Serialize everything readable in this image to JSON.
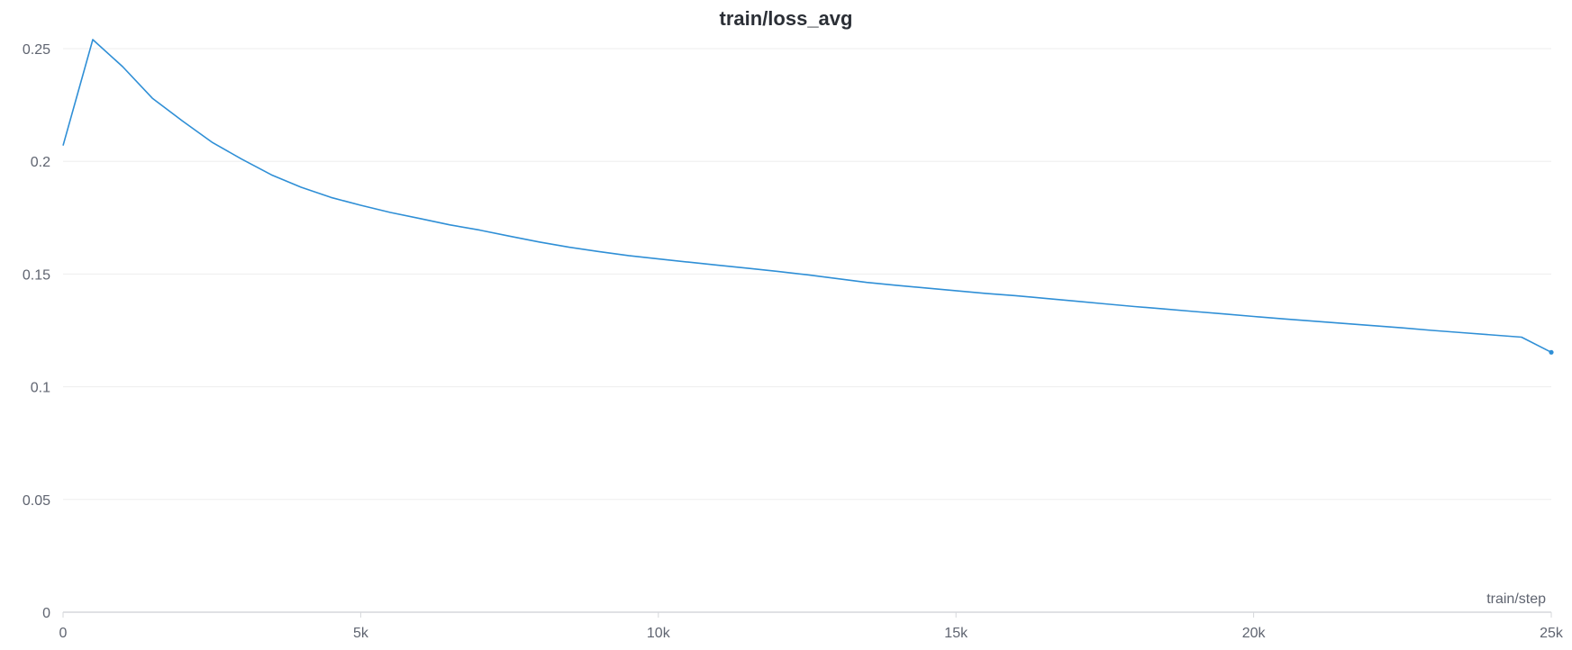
{
  "chart_data": {
    "type": "line",
    "title": "train/loss_avg",
    "xlabel": "train/step",
    "ylabel": "",
    "xlim": [
      0,
      25000
    ],
    "ylim": [
      0,
      0.25
    ],
    "grid": true,
    "x_ticks": [
      {
        "value": 0,
        "label": "0"
      },
      {
        "value": 5000,
        "label": "5k"
      },
      {
        "value": 10000,
        "label": "10k"
      },
      {
        "value": 15000,
        "label": "15k"
      },
      {
        "value": 20000,
        "label": "20k"
      },
      {
        "value": 25000,
        "label": "25k"
      }
    ],
    "y_ticks": [
      {
        "value": 0,
        "label": "0"
      },
      {
        "value": 0.05,
        "label": "0.05"
      },
      {
        "value": 0.1,
        "label": "0.1"
      },
      {
        "value": 0.15,
        "label": "0.15"
      },
      {
        "value": 0.2,
        "label": "0.2"
      },
      {
        "value": 0.25,
        "label": "0.25"
      }
    ],
    "colors": {
      "line": "#2f8fd6",
      "grid": "#eeeeee",
      "axis": "#d5d7db"
    },
    "series": [
      {
        "x": [
          0,
          500,
          1000,
          1500,
          2000,
          2500,
          3000,
          3500,
          4000,
          4500,
          5000,
          5500,
          6000,
          6500,
          7000,
          7500,
          8000,
          8500,
          9000,
          9500,
          10000,
          10500,
          11000,
          11500,
          12000,
          12500,
          13000,
          13500,
          14000,
          14500,
          15000,
          15500,
          16000,
          16500,
          17000,
          17500,
          18000,
          18500,
          19000,
          19500,
          20000,
          20500,
          21000,
          21500,
          22000,
          22500,
          23000,
          23500,
          24000,
          24500,
          25000
        ],
        "values": [
          0.207,
          0.254,
          0.242,
          0.228,
          0.218,
          0.2085,
          0.201,
          0.194,
          0.1885,
          0.184,
          0.1805,
          0.1773,
          0.1746,
          0.1718,
          0.1695,
          0.1668,
          0.1642,
          0.1619,
          0.16,
          0.1582,
          0.1567,
          0.1553,
          0.1539,
          0.1526,
          0.1512,
          0.1497,
          0.148,
          0.1463,
          0.145,
          0.1438,
          0.1426,
          0.1414,
          0.1404,
          0.1392,
          0.138,
          0.1368,
          0.1356,
          0.1345,
          0.1334,
          0.1323,
          0.1312,
          0.1301,
          0.1291,
          0.1281,
          0.1271,
          0.1261,
          0.125,
          0.124,
          0.123,
          0.122,
          0.1153
        ]
      }
    ]
  }
}
